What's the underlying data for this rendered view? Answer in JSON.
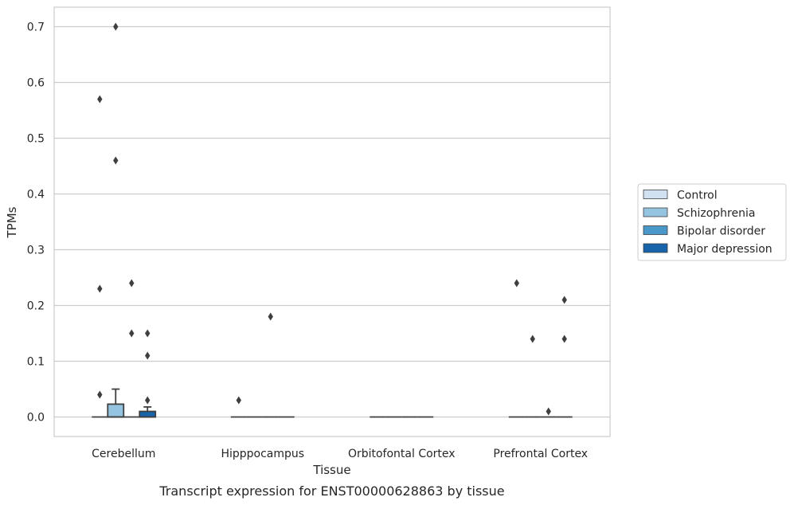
{
  "chart_data": {
    "type": "boxplot",
    "caption": "Transcript expression for ENST00000628863 by tissue",
    "xlabel": "Tissue",
    "ylabel": "TPMs",
    "ylim": [
      -0.035,
      0.735
    ],
    "yticks": [
      0.0,
      0.1,
      0.2,
      0.3,
      0.4,
      0.5,
      0.6,
      0.7
    ],
    "ytick_labels": [
      "0.0",
      "0.1",
      "0.2",
      "0.3",
      "0.4",
      "0.5",
      "0.6",
      "0.7"
    ],
    "grid": "horizontal",
    "legend_position": "right",
    "categories": [
      "Cerebellum",
      "Hipppocampus",
      "Orbitofontal Cortex",
      "Prefrontal Cortex"
    ],
    "series": [
      {
        "name": "Control",
        "color": "#d0e1f2",
        "boxes": [
          {
            "q1": 0,
            "median": 0,
            "q3": 0,
            "whisker_low": 0,
            "whisker_high": 0,
            "outliers": [
              0.04,
              0.23,
              0.57
            ]
          },
          {
            "q1": 0,
            "median": 0,
            "q3": 0,
            "whisker_low": 0,
            "whisker_high": 0,
            "outliers": [
              0.03
            ]
          },
          {
            "q1": 0,
            "median": 0,
            "q3": 0,
            "whisker_low": 0,
            "whisker_high": 0,
            "outliers": []
          },
          {
            "q1": 0,
            "median": 0,
            "q3": 0,
            "whisker_low": 0,
            "whisker_high": 0,
            "outliers": [
              0.24
            ]
          }
        ]
      },
      {
        "name": "Schizophrenia",
        "color": "#94c4df",
        "boxes": [
          {
            "q1": 0,
            "median": 0,
            "q3": 0.023,
            "whisker_low": 0,
            "whisker_high": 0.05,
            "outliers": [
              0.46,
              0.7
            ]
          },
          {
            "q1": 0,
            "median": 0,
            "q3": 0,
            "whisker_low": 0,
            "whisker_high": 0,
            "outliers": []
          },
          {
            "q1": 0,
            "median": 0,
            "q3": 0,
            "whisker_low": 0,
            "whisker_high": 0,
            "outliers": []
          },
          {
            "q1": 0,
            "median": 0,
            "q3": 0,
            "whisker_low": 0,
            "whisker_high": 0,
            "outliers": [
              0.14
            ]
          }
        ]
      },
      {
        "name": "Bipolar disorder",
        "color": "#4a98c9",
        "boxes": [
          {
            "q1": 0,
            "median": 0,
            "q3": 0,
            "whisker_low": 0,
            "whisker_high": 0,
            "outliers": [
              0.15,
              0.24
            ]
          },
          {
            "q1": 0,
            "median": 0,
            "q3": 0,
            "whisker_low": 0,
            "whisker_high": 0,
            "outliers": [
              0.18
            ]
          },
          {
            "q1": 0,
            "median": 0,
            "q3": 0,
            "whisker_low": 0,
            "whisker_high": 0,
            "outliers": []
          },
          {
            "q1": 0,
            "median": 0,
            "q3": 0,
            "whisker_low": 0,
            "whisker_high": 0,
            "outliers": [
              0.01
            ]
          }
        ]
      },
      {
        "name": "Major depression",
        "color": "#1764ab",
        "boxes": [
          {
            "q1": 0,
            "median": 0,
            "q3": 0.01,
            "whisker_low": 0,
            "whisker_high": 0.018,
            "outliers": [
              0.03,
              0.11,
              0.15
            ]
          },
          {
            "q1": 0,
            "median": 0,
            "q3": 0,
            "whisker_low": 0,
            "whisker_high": 0,
            "outliers": []
          },
          {
            "q1": 0,
            "median": 0,
            "q3": 0,
            "whisker_low": 0,
            "whisker_high": 0,
            "outliers": []
          },
          {
            "q1": 0,
            "median": 0,
            "q3": 0,
            "whisker_low": 0,
            "whisker_high": 0,
            "outliers": [
              0.14,
              0.21
            ]
          }
        ]
      }
    ]
  }
}
